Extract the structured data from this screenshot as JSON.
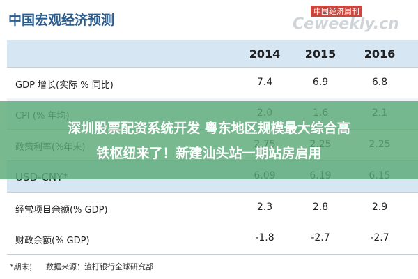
{
  "header": {
    "title": "中国宏观经济预测",
    "watermark_top": "中国经济周刊",
    "watermark": "Ceweekly.cn"
  },
  "table": {
    "columns": [
      "2014",
      "2015",
      "2016"
    ],
    "rows": [
      [
        "GDP 增长(实际 % 同比)",
        "7.4",
        "6.9",
        "6.8"
      ],
      [
        "CPI (% 年均)",
        "2.0",
        "1.6",
        "2.1"
      ],
      [
        "政策利率(%年末)",
        "2.75",
        "2.25",
        "2.25"
      ],
      [
        "USD-CNY*",
        "6.09",
        "6.19",
        "6.15"
      ],
      [
        "经常项目余额(% GDP)",
        "2.3",
        "2.8",
        "2.9"
      ],
      [
        "财政余额(% GDP)",
        "-1.8",
        "-2.7",
        "-2.7"
      ]
    ]
  },
  "footnote": {
    "mark": "*期末；",
    "source": "数据来源：渣打银行全球研究部"
  },
  "overlay": {
    "lines": [
      "深圳股票配资系统开发 粤东地区规模最大综合高",
      "铁枢纽来了！新建汕头站一期站房启用"
    ]
  }
}
